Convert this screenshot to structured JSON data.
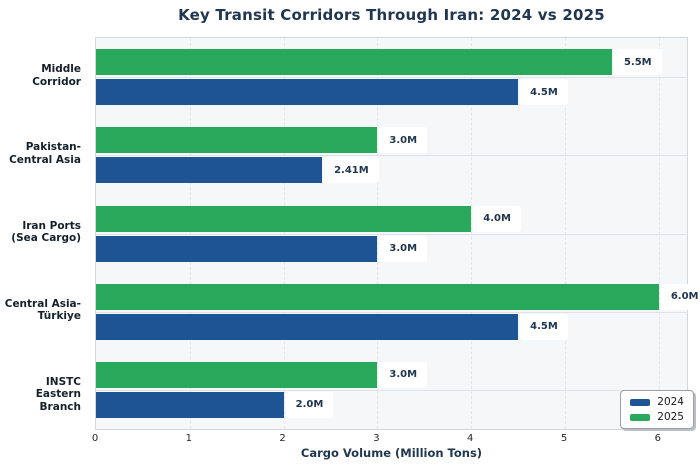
{
  "chart_data": {
    "type": "bar",
    "orientation": "horizontal",
    "title": "Key Transit Corridors Through Iran: 2024 vs 2025",
    "xlabel": "Cargo Volume (Million Tons)",
    "categories": [
      "Middle Corridor",
      "Pakistan-Central Asia",
      "Iran Ports (Sea Cargo)",
      "Central Asia-Türkiye",
      "INSTC Eastern Branch"
    ],
    "category_lines": [
      [
        "Middle",
        "Corridor"
      ],
      [
        "Pakistan-",
        "Central Asia"
      ],
      [
        "Iran Ports",
        "(Sea Cargo)"
      ],
      [
        "Central Asia-",
        "Türkiye"
      ],
      [
        "INSTC",
        "Eastern Branch"
      ]
    ],
    "series": [
      {
        "name": "2024",
        "color": "#1d5493",
        "values": [
          4.5,
          2.41,
          3.0,
          4.5,
          2.0
        ],
        "labels": [
          "4.5M",
          "2.41M",
          "3.0M",
          "4.5M",
          "2.0M"
        ]
      },
      {
        "name": "2025",
        "color": "#28a95c",
        "values": [
          5.5,
          3.0,
          4.0,
          6.0,
          3.0
        ],
        "labels": [
          "5.5M",
          "3.0M",
          "4.0M",
          "6.0M",
          "3.0M"
        ]
      }
    ],
    "bar_order_top_to_bottom": [
      "2025",
      "2024"
    ],
    "xticks": [
      0,
      1,
      2,
      3,
      4,
      5,
      6
    ],
    "xlim": [
      0,
      6.3
    ],
    "grid": {
      "vertical": "dashed",
      "horizontal": "solid"
    },
    "legend": {
      "position": "lower right",
      "entries": [
        "2024",
        "2025"
      ]
    }
  },
  "style": {
    "title_color": "#20374f",
    "bar_label_color": "#20374f",
    "axis_label_color": "#20374f",
    "plot_background": "#f6f7f9",
    "figure_background": "#ffffff"
  }
}
